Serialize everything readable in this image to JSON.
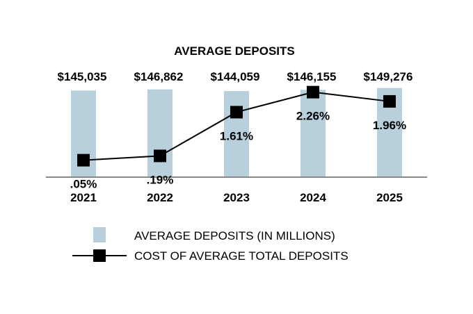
{
  "chart_data": {
    "type": "bar",
    "title": "AVERAGE DEPOSITS",
    "categories": [
      "2021",
      "2022",
      "2023",
      "2024",
      "2025"
    ],
    "series": [
      {
        "name": "AVERAGE DEPOSITS (IN MILLIONS)",
        "kind": "bar",
        "values": [
          145035,
          146862,
          144059,
          146155,
          149276
        ],
        "labels": [
          "$145,035",
          "$146,862",
          "$144,059",
          "$146,155",
          "$149,276"
        ]
      },
      {
        "name": "COST OF AVERAGE TOTAL DEPOSITS",
        "kind": "line",
        "values": [
          0.05,
          0.19,
          1.61,
          2.26,
          1.96
        ],
        "labels": [
          ".05%",
          ".19%",
          "1.61%",
          "2.26%",
          "1.96%"
        ]
      }
    ],
    "bar_ylim": [
      0,
      150000
    ],
    "line_ylim": [
      -0.5,
      2.5
    ],
    "legend_position": "bottom"
  },
  "colors": {
    "bar": "#b7d0dc",
    "line": "#000000",
    "marker": "#000000",
    "axis": "#888888"
  }
}
